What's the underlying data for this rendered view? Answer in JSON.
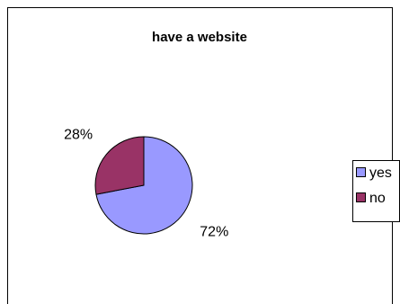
{
  "chart_data": {
    "type": "pie",
    "title": "have a website",
    "categories": [
      "yes",
      "no"
    ],
    "values": [
      72,
      28
    ],
    "data_labels": [
      "72%",
      "28%"
    ],
    "colors": [
      "#9999FF",
      "#993366"
    ],
    "start_angle_deg": 0,
    "direction": "clockwise",
    "legend_position": "right"
  }
}
